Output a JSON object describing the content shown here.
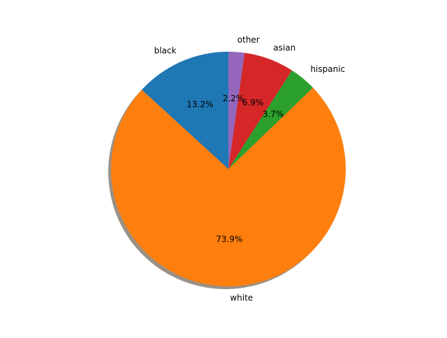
{
  "chart_data": {
    "type": "pie",
    "start_angle_deg": 90,
    "direction": "counterclockwise",
    "shadow": true,
    "slices": [
      {
        "label": "black",
        "value": 13.2,
        "pct_label": "13.2%",
        "color": "#1f77b4"
      },
      {
        "label": "white",
        "value": 73.9,
        "pct_label": "73.9%",
        "color": "#ff7f0e"
      },
      {
        "label": "hispanic",
        "value": 3.7,
        "pct_label": "3.7%",
        "color": "#2ca02c"
      },
      {
        "label": "asian",
        "value": 6.9,
        "pct_label": "6.9%",
        "color": "#d62728"
      },
      {
        "label": "other",
        "value": 2.2,
        "pct_label": "2.2%",
        "color": "#9467bd"
      }
    ]
  }
}
